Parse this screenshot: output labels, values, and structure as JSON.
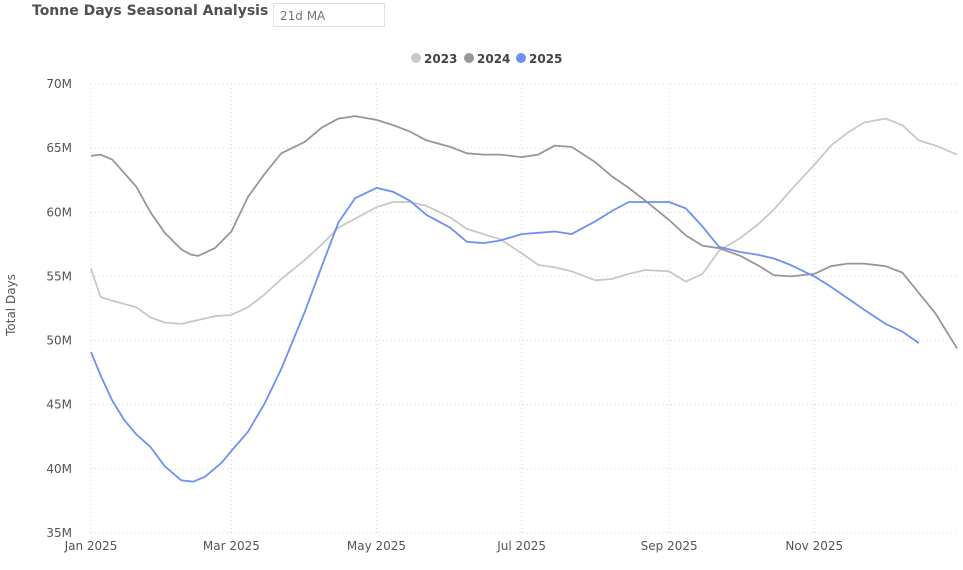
{
  "header": {
    "title": "Tonne Days Seasonal Analysis",
    "slicer_value": "21d MA"
  },
  "colors": {
    "2023": "#c8c8c8",
    "2024": "#979797",
    "2025": "#6f8ff2"
  },
  "chart_data": {
    "type": "line",
    "ylabel": "Total Days",
    "xlabel": "",
    "x_axis_type": "date",
    "x_range": [
      "2025-01-01",
      "2025-12-31"
    ],
    "ylim": [
      35000000,
      70000000
    ],
    "y_ticks": [
      {
        "value": 35000000,
        "label": "35M"
      },
      {
        "value": 40000000,
        "label": "40M"
      },
      {
        "value": 45000000,
        "label": "45M"
      },
      {
        "value": 50000000,
        "label": "50M"
      },
      {
        "value": 55000000,
        "label": "55M"
      },
      {
        "value": 60000000,
        "label": "60M"
      },
      {
        "value": 65000000,
        "label": "65M"
      },
      {
        "value": 70000000,
        "label": "70M"
      }
    ],
    "x_ticks": [
      {
        "value": "2025-01-01",
        "label": "Jan 2025"
      },
      {
        "value": "2025-03-01",
        "label": "Mar 2025"
      },
      {
        "value": "2025-05-01",
        "label": "May 2025"
      },
      {
        "value": "2025-07-01",
        "label": "Jul 2025"
      },
      {
        "value": "2025-09-01",
        "label": "Sep 2025"
      },
      {
        "value": "2025-11-01",
        "label": "Nov 2025"
      }
    ],
    "grid": true,
    "legend_position": "top-center",
    "series": [
      {
        "name": "2023",
        "x": [
          "2025-01-01",
          "2025-01-05",
          "2025-01-10",
          "2025-01-20",
          "2025-01-26",
          "2025-02-01",
          "2025-02-08",
          "2025-02-15",
          "2025-02-22",
          "2025-03-01",
          "2025-03-08",
          "2025-03-15",
          "2025-03-22",
          "2025-04-01",
          "2025-04-08",
          "2025-04-15",
          "2025-04-22",
          "2025-05-01",
          "2025-05-08",
          "2025-05-15",
          "2025-05-22",
          "2025-06-01",
          "2025-06-08",
          "2025-06-15",
          "2025-06-22",
          "2025-07-01",
          "2025-07-08",
          "2025-07-15",
          "2025-07-22",
          "2025-08-01",
          "2025-08-08",
          "2025-08-15",
          "2025-08-22",
          "2025-09-01",
          "2025-09-08",
          "2025-09-15",
          "2025-09-22",
          "2025-10-01",
          "2025-10-08",
          "2025-10-15",
          "2025-10-22",
          "2025-11-01",
          "2025-11-08",
          "2025-11-15",
          "2025-11-22",
          "2025-12-01",
          "2025-12-08",
          "2025-12-15",
          "2025-12-22",
          "2025-12-31"
        ],
        "values": [
          55600000,
          53400000,
          53100000,
          52600000,
          51800000,
          51400000,
          51300000,
          51600000,
          51900000,
          52000000,
          52600000,
          53600000,
          54800000,
          56300000,
          57500000,
          58800000,
          59500000,
          60400000,
          60800000,
          60800000,
          60500000,
          59600000,
          58700000,
          58300000,
          57900000,
          56800000,
          55900000,
          55700000,
          55400000,
          54700000,
          54800000,
          55200000,
          55500000,
          55400000,
          54600000,
          55200000,
          57000000,
          58000000,
          59000000,
          60200000,
          61700000,
          63700000,
          65200000,
          66200000,
          67000000,
          67300000,
          66800000,
          65600000,
          65200000,
          64500000
        ]
      },
      {
        "name": "2024",
        "x": [
          "2025-01-01",
          "2025-01-05",
          "2025-01-10",
          "2025-01-20",
          "2025-01-26",
          "2025-02-01",
          "2025-02-08",
          "2025-02-12",
          "2025-02-15",
          "2025-02-22",
          "2025-03-01",
          "2025-03-08",
          "2025-03-15",
          "2025-03-22",
          "2025-04-01",
          "2025-04-08",
          "2025-04-15",
          "2025-04-22",
          "2025-05-01",
          "2025-05-08",
          "2025-05-15",
          "2025-05-22",
          "2025-06-01",
          "2025-06-08",
          "2025-06-15",
          "2025-06-22",
          "2025-07-01",
          "2025-07-08",
          "2025-07-15",
          "2025-07-22",
          "2025-08-01",
          "2025-08-08",
          "2025-08-15",
          "2025-08-22",
          "2025-09-01",
          "2025-09-08",
          "2025-09-15",
          "2025-09-22",
          "2025-10-01",
          "2025-10-08",
          "2025-10-15",
          "2025-10-22",
          "2025-11-01",
          "2025-11-08",
          "2025-11-15",
          "2025-11-22",
          "2025-12-01",
          "2025-12-08",
          "2025-12-15",
          "2025-12-22",
          "2025-12-31"
        ],
        "values": [
          64400000,
          64500000,
          64100000,
          62000000,
          60000000,
          58400000,
          57100000,
          56700000,
          56600000,
          57200000,
          58500000,
          61200000,
          63000000,
          64600000,
          65500000,
          66600000,
          67300000,
          67500000,
          67200000,
          66800000,
          66300000,
          65600000,
          65100000,
          64600000,
          64500000,
          64500000,
          64300000,
          64500000,
          65200000,
          65100000,
          63900000,
          62800000,
          61900000,
          60900000,
          59400000,
          58200000,
          57400000,
          57200000,
          56600000,
          55900000,
          55100000,
          55000000,
          55200000,
          55800000,
          56000000,
          56000000,
          55800000,
          55300000,
          53700000,
          52100000,
          49400000
        ]
      },
      {
        "name": "2025",
        "x": [
          "2025-01-01",
          "2025-01-05",
          "2025-01-10",
          "2025-01-15",
          "2025-01-20",
          "2025-01-26",
          "2025-02-01",
          "2025-02-08",
          "2025-02-13",
          "2025-02-18",
          "2025-02-25",
          "2025-03-01",
          "2025-03-08",
          "2025-03-15",
          "2025-03-22",
          "2025-04-01",
          "2025-04-08",
          "2025-04-15",
          "2025-04-22",
          "2025-05-01",
          "2025-05-08",
          "2025-05-15",
          "2025-05-22",
          "2025-06-01",
          "2025-06-08",
          "2025-06-15",
          "2025-06-22",
          "2025-07-01",
          "2025-07-08",
          "2025-07-15",
          "2025-07-22",
          "2025-08-01",
          "2025-08-08",
          "2025-08-15",
          "2025-08-22",
          "2025-09-01",
          "2025-09-08",
          "2025-09-15",
          "2025-09-22",
          "2025-10-01",
          "2025-10-08",
          "2025-10-15",
          "2025-10-22",
          "2025-11-01",
          "2025-11-08",
          "2025-11-15",
          "2025-11-22",
          "2025-12-01",
          "2025-12-08",
          "2025-12-15"
        ],
        "values": [
          49100000,
          47300000,
          45300000,
          43800000,
          42700000,
          41700000,
          40200000,
          39100000,
          39000000,
          39400000,
          40500000,
          41400000,
          42900000,
          45100000,
          47800000,
          52300000,
          55800000,
          59200000,
          61100000,
          61900000,
          61600000,
          60900000,
          59800000,
          58800000,
          57700000,
          57600000,
          57800000,
          58300000,
          58400000,
          58500000,
          58300000,
          59300000,
          60100000,
          60800000,
          60800000,
          60800000,
          60300000,
          58900000,
          57300000,
          56900000,
          56700000,
          56400000,
          55900000,
          55000000,
          54200000,
          53300000,
          52400000,
          51300000,
          50700000,
          49800000
        ]
      }
    ]
  }
}
